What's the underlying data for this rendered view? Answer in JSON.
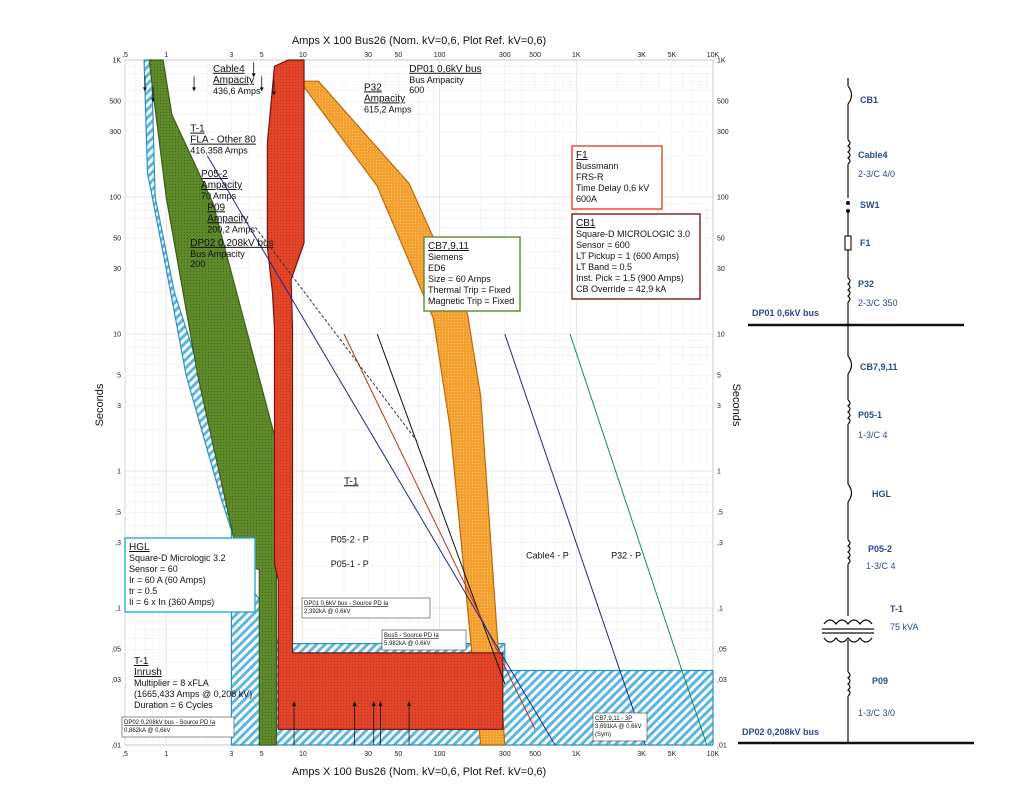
{
  "chart_data": {
    "type": "line",
    "title_top": "Amps  X  100   Bus26 (Nom. kV=0,6, Plot Ref. kV=0,6)",
    "title_bottom": "Amps  X  100   Bus26 (Nom. kV=0,6, Plot Ref. kV=0,6)",
    "ylabel": "Seconds",
    "x_scale": "log",
    "y_scale": "log",
    "xlim": [
      0.5,
      10000
    ],
    "ylim": [
      0.01,
      1000
    ],
    "x_ticks": [
      {
        "v": 0.5,
        "label": ",5"
      },
      {
        "v": 1,
        "label": "1"
      },
      {
        "v": 3,
        "label": "3"
      },
      {
        "v": 5,
        "label": "5"
      },
      {
        "v": 10,
        "label": "10"
      },
      {
        "v": 30,
        "label": "30"
      },
      {
        "v": 50,
        "label": "50"
      },
      {
        "v": 100,
        "label": "100"
      },
      {
        "v": 300,
        "label": "300"
      },
      {
        "v": 500,
        "label": "500"
      },
      {
        "v": 1000,
        "label": "1K"
      },
      {
        "v": 3000,
        "label": "3K"
      },
      {
        "v": 5000,
        "label": "5K"
      },
      {
        "v": 10000,
        "label": "10K"
      }
    ],
    "y_ticks": [
      {
        "v": 1000,
        "label": "1K"
      },
      {
        "v": 500,
        "label": "500"
      },
      {
        "v": 300,
        "label": "300"
      },
      {
        "v": 100,
        "label": "100"
      },
      {
        "v": 50,
        "label": "50"
      },
      {
        "v": 30,
        "label": "30"
      },
      {
        "v": 10,
        "label": "10"
      },
      {
        "v": 5,
        "label": "5"
      },
      {
        "v": 3,
        "label": "3"
      },
      {
        "v": 1,
        "label": "1"
      },
      {
        "v": 0.5,
        "label": ",5"
      },
      {
        "v": 0.3,
        "label": ",3"
      },
      {
        "v": 0.1,
        "label": ",1"
      },
      {
        "v": 0.05,
        "label": ",05"
      },
      {
        "v": 0.03,
        "label": ",03"
      },
      {
        "v": 0.01,
        "label": ",01"
      }
    ],
    "bands": [
      {
        "name": "CB1",
        "color": "#e2452a",
        "outline": "#7a1210",
        "polygon": [
          [
            7.8,
            1000
          ],
          [
            10.2,
            1000
          ],
          [
            10.2,
            46
          ],
          [
            8.2,
            25
          ],
          [
            8.4,
            11
          ],
          [
            8.4,
            0.047
          ],
          [
            290,
            0.047
          ],
          [
            290,
            0.013
          ],
          [
            6.6,
            0.013
          ],
          [
            6.6,
            0.16
          ],
          [
            6.2,
            0.21
          ],
          [
            6.2,
            11
          ],
          [
            6.0,
            20
          ],
          [
            5.5,
            43
          ],
          [
            5.5,
            250
          ],
          [
            6.2,
            900
          ]
        ]
      },
      {
        "name": "F1",
        "color": "#f4a030",
        "outline": "#b86a10",
        "polygon": [
          [
            9.5,
            700
          ],
          [
            13,
            700
          ],
          [
            60,
            125
          ],
          [
            160,
            14
          ],
          [
            200,
            3.5
          ],
          [
            300,
            0.01
          ],
          [
            200,
            0.01
          ],
          [
            120,
            2
          ],
          [
            90,
            13
          ],
          [
            35,
            120
          ]
        ]
      },
      {
        "name": "CB7,9,11",
        "color": "#5e8a2c",
        "outline": "#3d5e18",
        "polygon": [
          [
            0.75,
            1000
          ],
          [
            0.95,
            1000
          ],
          [
            1.1,
            400
          ],
          [
            2.2,
            90
          ],
          [
            6.4,
            1.6
          ],
          [
            6.4,
            0.01
          ],
          [
            4.8,
            0.01
          ],
          [
            4.8,
            0.19
          ],
          [
            3.4,
            0.22
          ],
          [
            1.7,
            5
          ],
          [
            1.0,
            100
          ]
        ]
      },
      {
        "name": "HGL",
        "color": "#5ab7e0",
        "outline": "#2d8fc4",
        "hatch": true,
        "polygon": [
          [
            0.69,
            1000
          ],
          [
            0.78,
            1000
          ],
          [
            0.83,
            100
          ],
          [
            1.15,
            20
          ],
          [
            1.8,
            5
          ],
          [
            2.8,
            1.6
          ],
          [
            3.2,
            0.68
          ],
          [
            3.2,
            0.2
          ],
          [
            3.3,
            0.18
          ],
          [
            4.2,
            0.14
          ],
          [
            5.3,
            0.1
          ],
          [
            6.0,
            0.09
          ],
          [
            6.5,
            0.055
          ],
          [
            300,
            0.055
          ],
          [
            300,
            0.035
          ],
          [
            10000,
            0.035
          ],
          [
            10000,
            0.01
          ],
          [
            3.0,
            0.01
          ],
          [
            3.0,
            0.37
          ],
          [
            2.5,
            0.65
          ],
          [
            1.4,
            5
          ],
          [
            1.0,
            30
          ],
          [
            0.73,
            150
          ]
        ]
      }
    ],
    "lines": [
      {
        "name": "Cable4",
        "color": "#1f2a8a",
        "points": [
          [
            300,
            10
          ],
          [
            3200,
            0.01
          ]
        ]
      },
      {
        "name": "P32",
        "color": "#1e8a4a",
        "points": [
          [
            900,
            10
          ],
          [
            9000,
            0.01
          ]
        ]
      },
      {
        "name": "P05-2",
        "color": "#111111",
        "points": [
          [
            35,
            10
          ],
          [
            300,
            0.028
          ]
        ]
      },
      {
        "name": "P05-1",
        "color": "#c0311e",
        "points": [
          [
            20,
            10
          ],
          [
            500,
            0.013
          ]
        ]
      },
      {
        "name": "P09",
        "color": "#1f2a8a",
        "points": [
          [
            2,
            200
          ],
          [
            700,
            0.01
          ]
        ]
      },
      {
        "name": "T-1",
        "color": "#333333",
        "dashed": true,
        "points": [
          [
            4.5,
            60
          ],
          [
            70,
            1.6
          ]
        ]
      }
    ],
    "ampacity_arrows": [
      {
        "name": "Cable4",
        "x": 4.37,
        "y": 760
      },
      {
        "name": "P32",
        "x": 6.15,
        "y": 560
      },
      {
        "name": "T-1 FLA",
        "x": 0.8,
        "y": 500
      },
      {
        "name": "P05-2",
        "x": 1.6,
        "y": 600
      },
      {
        "name": "P09",
        "x": 5,
        "y": 600
      },
      {
        "name": "DP02",
        "x": 0.7,
        "y": 600
      }
    ],
    "fault_arrows": [
      {
        "x": 8.62,
        "y": 0.01
      },
      {
        "x": 23.92,
        "y": 0.01
      },
      {
        "x": 33,
        "y": 0.01
      },
      {
        "x": 36.91,
        "y": 0.01
      },
      {
        "x": 59.82,
        "y": 0.01
      }
    ],
    "labels": [
      {
        "id": "cable4-amp",
        "x": 2.2,
        "y": 820,
        "lines": [
          "Cable4",
          "Ampacity"
        ],
        "underline": true,
        "sub": "436,6 Amps"
      },
      {
        "id": "dp01-bus",
        "x": 60,
        "y": 820,
        "lines": [
          "DP01 0,6kV bus"
        ],
        "underline": true,
        "sub": "Bus Ampacity",
        "sub2": "600"
      },
      {
        "id": "p32-amp",
        "x": 28,
        "y": 600,
        "lines": [
          "P32",
          "Ampacity"
        ],
        "underline": true,
        "sub": "615,2 Amps"
      },
      {
        "id": "t1-fla",
        "x": 1.5,
        "y": 300,
        "lines": [
          "T-1",
          "FLA - Other 80"
        ],
        "underline": true,
        "sub": "416,358 Amps"
      },
      {
        "id": "p05-2-amp",
        "x": 1.8,
        "y": 140,
        "lines": [
          "P05-2",
          "Ampacity"
        ],
        "underline": true,
        "sub": "70 Amps"
      },
      {
        "id": "p09-amp",
        "x": 2.0,
        "y": 80,
        "lines": [
          "P09",
          "Ampacity"
        ],
        "underline": true,
        "sub": "200,2 Amps"
      },
      {
        "id": "dp02-bus",
        "x": 1.5,
        "y": 44,
        "lines": [
          "DP02 0,208kV bus"
        ],
        "underline": true,
        "sub": "Bus Ampacity",
        "sub2": "200"
      },
      {
        "id": "t1-curve",
        "x": 20,
        "y": 0.8,
        "lines": [
          "T-1"
        ],
        "underline": true
      },
      {
        "id": "p05-2-p",
        "x": 16,
        "y": 0.3,
        "lines": [
          "P05-2 - P"
        ]
      },
      {
        "id": "p05-1-p",
        "x": 16,
        "y": 0.2,
        "lines": [
          "P05-1 - P"
        ]
      },
      {
        "id": "cable4-p",
        "x": 430,
        "y": 0.23,
        "lines": [
          "Cable4 - P"
        ]
      },
      {
        "id": "p32-p",
        "x": 1800,
        "y": 0.23,
        "lines": [
          "P32 - P"
        ]
      }
    ],
    "callouts": [
      {
        "id": "f1-box",
        "color": "#e2452a",
        "title": "F1",
        "lines": [
          "Bussmann",
          "FRS-R",
          "Time Delay  0,6 kV",
          "600A"
        ]
      },
      {
        "id": "cb1-box",
        "color": "#7a1a1a",
        "title": "CB1",
        "lines": [
          "Square-D  MICROLOGIC 3.0",
          "Sensor = 600",
          "LT Pickup = 1 (600 Amps)",
          "LT Band = 0.5",
          "Inst. Pick = 1.5 (900 Amps)",
          "CB Override = 42,9 kA"
        ]
      },
      {
        "id": "cb7-box",
        "color": "#5e8a2c",
        "title": "CB7,9,11",
        "lines": [
          "Siemens",
          "ED6",
          "Size = 60 Amps",
          "Thermal Trip = Fixed",
          "Magnetic Trip = Fixed"
        ]
      },
      {
        "id": "hgl-box",
        "color": "#2da7d8",
        "title": "HGL",
        "lines": [
          "Square-D  Micrologic 3.2",
          "Sensor = 60",
          "Ir = 60 A (60 Amps)",
          "tr = 0.5",
          "Ii = 6 x In (360 Amps)"
        ]
      },
      {
        "id": "t1-inrush",
        "color": "",
        "title": "T-1",
        "title2": "Inrush",
        "lines": [
          "Multiplier = 8 xFLA",
          "(1665,433 Amps @ 0,208 kV)",
          "Duration = 6 Cycles"
        ]
      }
    ],
    "fault_boxes": [
      {
        "id": "dp01-fault",
        "lines": [
          "DP01 0,6kV bus - Source PD Ia",
          "2,392kA @ 0,6kV"
        ]
      },
      {
        "id": "bus5-fault",
        "lines": [
          "Bus5 - Source PD Ia",
          "5,982kA @ 0,6kV"
        ]
      },
      {
        "id": "dp02-fault",
        "lines": [
          "DP02 0,208kV bus - Source PD Ia",
          "0,862kA @ 0,6kV"
        ]
      },
      {
        "id": "cb7-fault",
        "lines": [
          "CB7,9,11 - 3P",
          "3,691kA @ 0,6kV",
          "(Sym)"
        ]
      }
    ]
  },
  "oneline": {
    "items": [
      {
        "id": "cb1",
        "name": "CB1",
        "desc": ""
      },
      {
        "id": "cable4",
        "name": "Cable4",
        "desc": "2-3/C 4/0"
      },
      {
        "id": "sw1",
        "name": "SW1",
        "desc": ""
      },
      {
        "id": "f1",
        "name": "F1",
        "desc": ""
      },
      {
        "id": "p32",
        "name": "P32",
        "desc": "2-3/C 350"
      },
      {
        "id": "dp01",
        "name": "DP01 0,6kV bus",
        "desc": ""
      },
      {
        "id": "cb7",
        "name": "CB7,9,11",
        "desc": ""
      },
      {
        "id": "p05-1",
        "name": "P05-1",
        "desc": "1-3/C 4"
      },
      {
        "id": "hgl",
        "name": "HGL",
        "desc": ""
      },
      {
        "id": "p05-2",
        "name": "P05-2",
        "desc": "1-3/C 4"
      },
      {
        "id": "t1",
        "name": "T-1",
        "desc": "75 kVA"
      },
      {
        "id": "p09",
        "name": "P09",
        "desc": "1-3/C 3/0"
      },
      {
        "id": "dp02",
        "name": "DP02 0,208kV bus",
        "desc": ""
      }
    ]
  }
}
